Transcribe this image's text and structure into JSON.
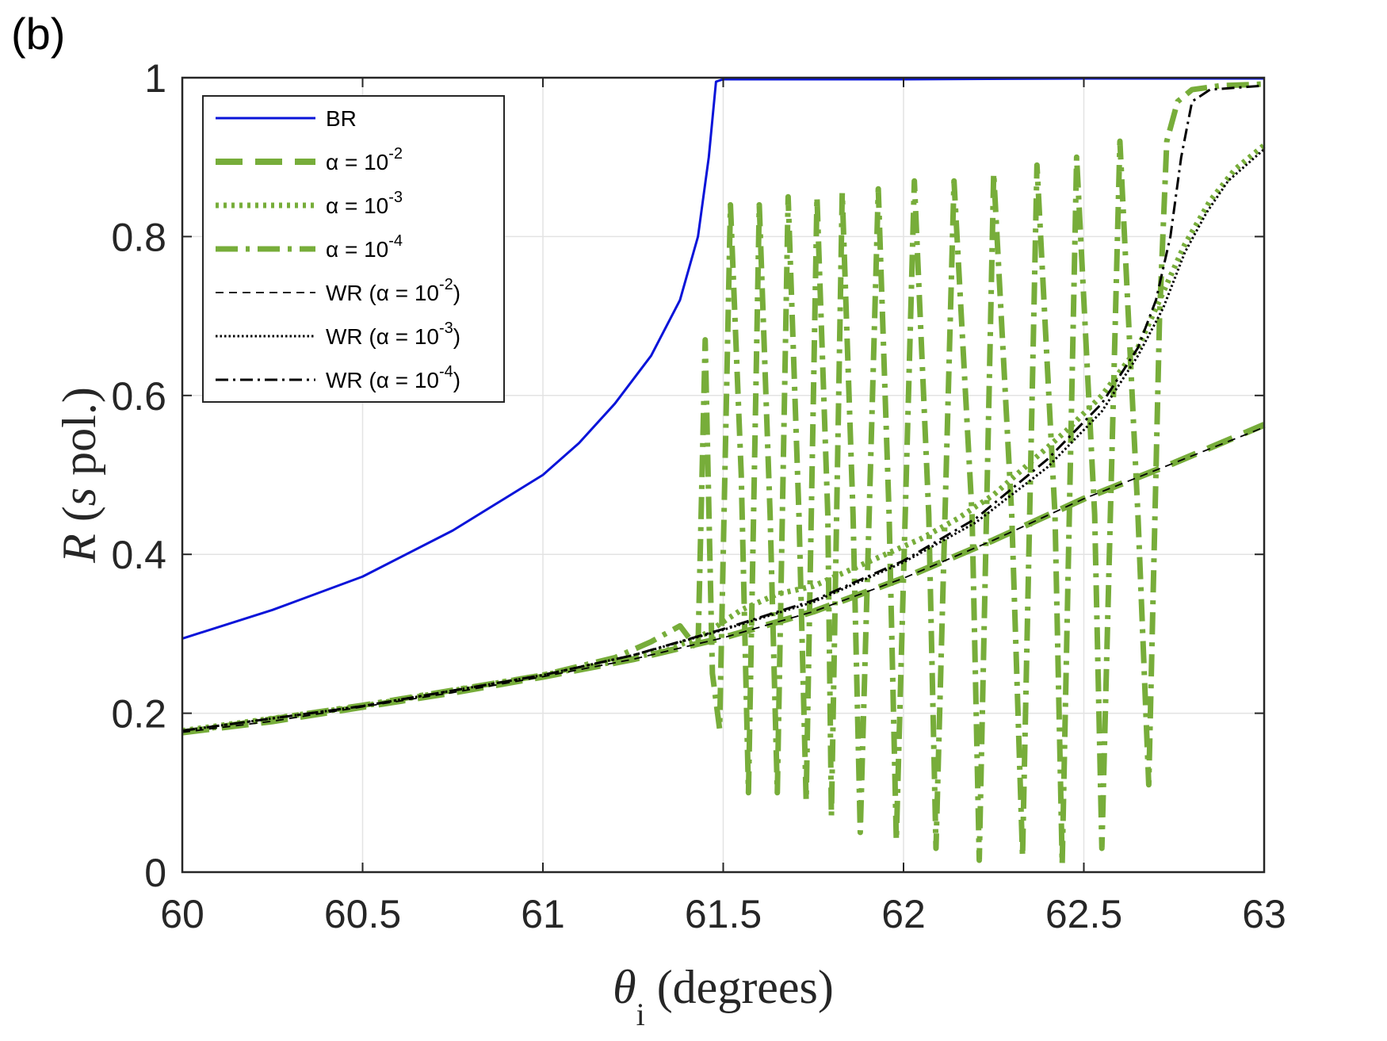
{
  "panel_label": "(b)",
  "chart_data": {
    "type": "line",
    "title": "",
    "xlabel": {
      "symbol": "θ",
      "subscript": "i",
      "rest": " (degrees)"
    },
    "ylabel": {
      "italic": "R",
      "open": " (",
      "italic2": "s",
      "rest": " pol.)"
    },
    "xlim": [
      60,
      63
    ],
    "ylim": [
      0,
      1
    ],
    "xticks": [
      "60",
      "60.5",
      "61",
      "61.5",
      "62",
      "62.5",
      "63"
    ],
    "yticks": [
      "0",
      "0.2",
      "0.4",
      "0.6",
      "0.8",
      "1"
    ],
    "grid": true,
    "legend_position": "top-left",
    "colors": {
      "blue": "#0a14d9",
      "green": "#77ad3a",
      "black": "#000000"
    },
    "series": [
      {
        "name": "BR",
        "legend": {
          "base": "BR",
          "sup": "",
          "suffix": ""
        },
        "color": "#0a14d9",
        "style": "solid",
        "points": [
          [
            60,
            0.294
          ],
          [
            60.25,
            0.33
          ],
          [
            60.5,
            0.372
          ],
          [
            60.75,
            0.43
          ],
          [
            61,
            0.5
          ],
          [
            61.1,
            0.54
          ],
          [
            61.2,
            0.59
          ],
          [
            61.3,
            0.65
          ],
          [
            61.38,
            0.72
          ],
          [
            61.43,
            0.8
          ],
          [
            61.46,
            0.9
          ],
          [
            61.48,
            0.995
          ],
          [
            61.5,
            0.998
          ],
          [
            62,
            0.998
          ],
          [
            62.5,
            0.999
          ],
          [
            63,
            0.999
          ]
        ]
      },
      {
        "name": "α = 10-2",
        "legend": {
          "base": "α = 10",
          "sup": "-2",
          "suffix": ""
        },
        "color": "#77ad3a",
        "style": "dash",
        "points": [
          [
            60,
            0.176
          ],
          [
            60.25,
            0.19
          ],
          [
            60.5,
            0.208
          ],
          [
            60.75,
            0.226
          ],
          [
            61,
            0.246
          ],
          [
            61.25,
            0.268
          ],
          [
            61.5,
            0.295
          ],
          [
            61.75,
            0.328
          ],
          [
            62,
            0.37
          ],
          [
            62.25,
            0.418
          ],
          [
            62.5,
            0.47
          ],
          [
            62.75,
            0.515
          ],
          [
            63,
            0.563
          ]
        ]
      },
      {
        "name": "α = 10-3",
        "legend": {
          "base": "α = 10",
          "sup": "-3",
          "suffix": ""
        },
        "color": "#77ad3a",
        "style": "dot",
        "points": [
          [
            60,
            0.178
          ],
          [
            60.5,
            0.209
          ],
          [
            61,
            0.248
          ],
          [
            61.2,
            0.265
          ],
          [
            61.35,
            0.28
          ],
          [
            61.45,
            0.3
          ],
          [
            61.55,
            0.33
          ],
          [
            61.65,
            0.35
          ],
          [
            61.75,
            0.36
          ],
          [
            61.85,
            0.38
          ],
          [
            61.95,
            0.4
          ],
          [
            62.05,
            0.42
          ],
          [
            62.15,
            0.445
          ],
          [
            62.25,
            0.475
          ],
          [
            62.35,
            0.515
          ],
          [
            62.45,
            0.555
          ],
          [
            62.55,
            0.6
          ],
          [
            62.65,
            0.66
          ],
          [
            62.72,
            0.73
          ],
          [
            62.78,
            0.79
          ],
          [
            62.85,
            0.845
          ],
          [
            62.92,
            0.885
          ],
          [
            63,
            0.915
          ]
        ]
      },
      {
        "name": "α = 10-4",
        "legend": {
          "base": "α = 10",
          "sup": "-4",
          "suffix": ""
        },
        "color": "#77ad3a",
        "style": "dashdot",
        "points": [
          [
            60,
            0.176
          ],
          [
            60.5,
            0.21
          ],
          [
            61,
            0.248
          ],
          [
            61.2,
            0.27
          ],
          [
            61.3,
            0.29
          ],
          [
            61.38,
            0.31
          ],
          [
            61.43,
            0.28
          ],
          [
            61.45,
            0.67
          ],
          [
            61.47,
            0.25
          ],
          [
            61.49,
            0.18
          ],
          [
            61.52,
            0.84
          ],
          [
            61.55,
            0.5
          ],
          [
            61.57,
            0.1
          ],
          [
            61.6,
            0.84
          ],
          [
            61.63,
            0.45
          ],
          [
            61.65,
            0.1
          ],
          [
            61.68,
            0.85
          ],
          [
            61.71,
            0.45
          ],
          [
            61.73,
            0.09
          ],
          [
            61.76,
            0.85
          ],
          [
            61.79,
            0.45
          ],
          [
            61.8,
            0.07
          ],
          [
            61.83,
            0.855
          ],
          [
            61.86,
            0.45
          ],
          [
            61.88,
            0.05
          ],
          [
            61.93,
            0.86
          ],
          [
            61.96,
            0.45
          ],
          [
            61.98,
            0.04
          ],
          [
            62.03,
            0.87
          ],
          [
            62.07,
            0.45
          ],
          [
            62.09,
            0.03
          ],
          [
            62.14,
            0.87
          ],
          [
            62.19,
            0.45
          ],
          [
            62.21,
            0.015
          ],
          [
            62.25,
            0.88
          ],
          [
            62.3,
            0.45
          ],
          [
            62.33,
            0.02
          ],
          [
            62.37,
            0.89
          ],
          [
            62.42,
            0.45
          ],
          [
            62.44,
            0.01
          ],
          [
            62.48,
            0.9
          ],
          [
            62.53,
            0.45
          ],
          [
            62.55,
            0.03
          ],
          [
            62.6,
            0.92
          ],
          [
            62.65,
            0.45
          ],
          [
            62.68,
            0.11
          ],
          [
            62.71,
            0.7
          ],
          [
            62.73,
            0.92
          ],
          [
            62.76,
            0.97
          ],
          [
            62.8,
            0.985
          ],
          [
            62.88,
            0.99
          ],
          [
            63,
            0.992
          ]
        ]
      },
      {
        "name": "WR (α = 10-2)",
        "legend": {
          "base": "WR (α = 10",
          "sup": "-2",
          "suffix": ")"
        },
        "color": "#000000",
        "style": "thindash",
        "points": [
          [
            60,
            0.176
          ],
          [
            60.25,
            0.19
          ],
          [
            60.5,
            0.208
          ],
          [
            60.75,
            0.226
          ],
          [
            61,
            0.246
          ],
          [
            61.25,
            0.268
          ],
          [
            61.5,
            0.295
          ],
          [
            61.75,
            0.328
          ],
          [
            62,
            0.37
          ],
          [
            62.25,
            0.418
          ],
          [
            62.5,
            0.47
          ],
          [
            62.75,
            0.515
          ],
          [
            63,
            0.56
          ]
        ]
      },
      {
        "name": "WR (α = 10-3)",
        "legend": {
          "base": "WR (α = 10",
          "sup": "-3",
          "suffix": ")"
        },
        "color": "#000000",
        "style": "thindot",
        "points": [
          [
            60,
            0.178
          ],
          [
            60.5,
            0.209
          ],
          [
            61,
            0.248
          ],
          [
            61.25,
            0.273
          ],
          [
            61.5,
            0.305
          ],
          [
            61.75,
            0.34
          ],
          [
            62,
            0.39
          ],
          [
            62.2,
            0.44
          ],
          [
            62.4,
            0.51
          ],
          [
            62.55,
            0.58
          ],
          [
            62.65,
            0.65
          ],
          [
            62.72,
            0.71
          ],
          [
            62.78,
            0.78
          ],
          [
            62.84,
            0.83
          ],
          [
            62.9,
            0.87
          ],
          [
            63,
            0.91
          ]
        ]
      },
      {
        "name": "WR (α = 10-4)",
        "legend": {
          "base": "WR (α = 10",
          "sup": "-4",
          "suffix": ")"
        },
        "color": "#000000",
        "style": "dashdotblack",
        "points": [
          [
            60,
            0.178
          ],
          [
            60.5,
            0.209
          ],
          [
            61,
            0.248
          ],
          [
            61.25,
            0.273
          ],
          [
            61.5,
            0.306
          ],
          [
            61.75,
            0.342
          ],
          [
            62,
            0.392
          ],
          [
            62.2,
            0.445
          ],
          [
            62.4,
            0.52
          ],
          [
            62.55,
            0.59
          ],
          [
            62.65,
            0.66
          ],
          [
            62.7,
            0.72
          ],
          [
            62.74,
            0.8
          ],
          [
            62.77,
            0.9
          ],
          [
            62.8,
            0.97
          ],
          [
            62.85,
            0.985
          ],
          [
            63,
            0.99
          ]
        ]
      }
    ]
  }
}
